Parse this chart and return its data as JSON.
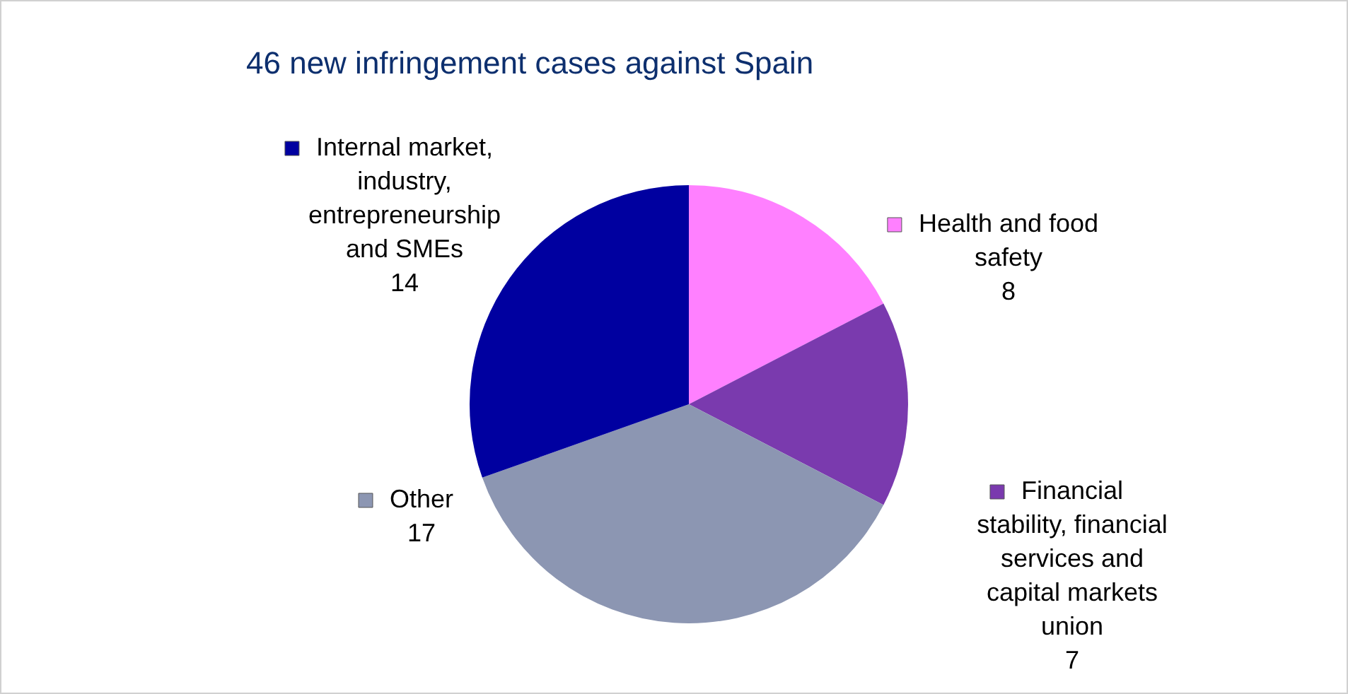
{
  "chart_data": {
    "type": "pie",
    "title": "46 new infringement cases against Spain",
    "categories": [
      "Health and food safety",
      "Financial stability, financial services and capital markets union",
      "Other",
      "Internal market, industry, entrepreneurship and SMEs"
    ],
    "values": [
      8,
      7,
      17,
      14
    ],
    "colors": [
      "#ff80ff",
      "#7a3aae",
      "#8c96b2",
      "#0000a0"
    ],
    "data_labels": true,
    "legend": "top right"
  }
}
